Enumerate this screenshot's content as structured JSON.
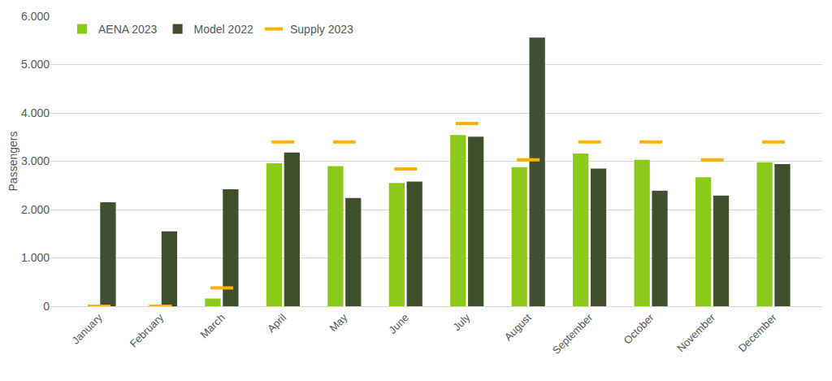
{
  "chart_data": {
    "type": "bar",
    "y_label": "Passengers",
    "categories": [
      "January",
      "February",
      "March",
      "April",
      "May",
      "June",
      "July",
      "August",
      "September",
      "October",
      "November",
      "December"
    ],
    "series": [
      {
        "name": "AENA 2023",
        "type": "bar",
        "color": "#8cc919",
        "values": [
          null,
          null,
          160,
          2960,
          2900,
          2550,
          3540,
          2880,
          3160,
          3030,
          2670,
          2980
        ]
      },
      {
        "name": "Model 2022",
        "type": "bar",
        "color": "#404f2e",
        "values": [
          2150,
          1550,
          2420,
          3180,
          2240,
          2580,
          3510,
          5560,
          2850,
          2390,
          2290,
          2940
        ]
      },
      {
        "name": "Supply 2023",
        "type": "scatter",
        "marker": "dash",
        "color": "#ffb000",
        "values": [
          0,
          0,
          380,
          3400,
          3400,
          2840,
          3780,
          3030,
          3400,
          3400,
          3030,
          3400
        ]
      }
    ],
    "ylim": [
      0,
      6000
    ],
    "yticks": [
      0,
      {
        "value": 1000,
        "label": "1.000"
      },
      {
        "value": 2000,
        "label": "2.000"
      },
      {
        "value": 3000,
        "label": "3.000"
      },
      {
        "value": 4000,
        "label": "4.000"
      },
      {
        "value": 5000,
        "label": "5.000"
      },
      {
        "value": 6000,
        "label": "6.000"
      }
    ],
    "grid": true,
    "legend": "top-left"
  }
}
